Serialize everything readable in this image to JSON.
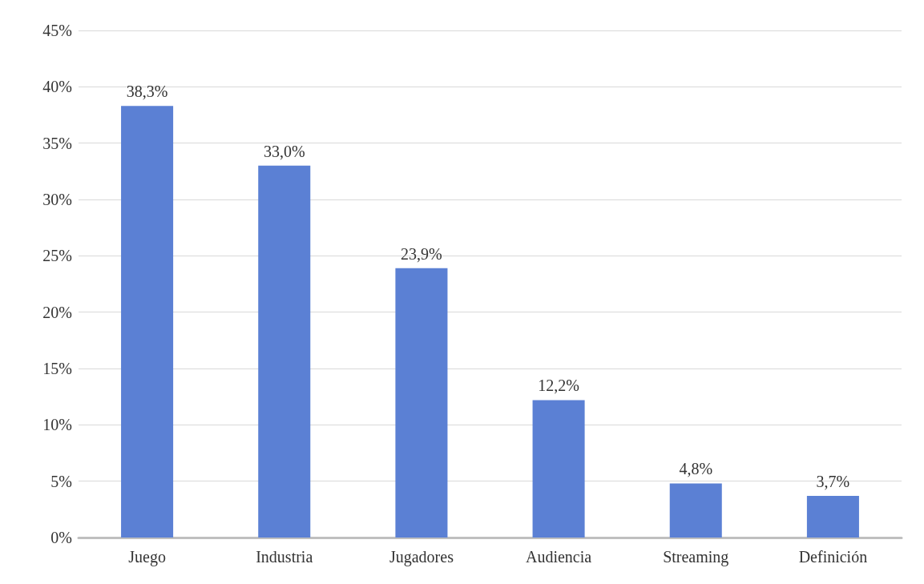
{
  "chart_data": {
    "type": "bar",
    "categories": [
      "Juego",
      "Industria",
      "Jugadores",
      "Audiencia",
      "Streaming",
      "Definición"
    ],
    "values": [
      38.3,
      33.0,
      23.9,
      12.2,
      4.8,
      3.7
    ],
    "value_labels": [
      "38,3%",
      "33,0%",
      "23,9%",
      "12,2%",
      "4,8%",
      "3,7%"
    ],
    "color": "#5b80d4",
    "ylim": [
      0,
      45
    ],
    "yticks": [
      {
        "value": 0,
        "label": "0%"
      },
      {
        "value": 5,
        "label": "5%"
      },
      {
        "value": 10,
        "label": "10%"
      },
      {
        "value": 15,
        "label": "15%"
      },
      {
        "value": 20,
        "label": "20%"
      },
      {
        "value": 25,
        "label": "25%"
      },
      {
        "value": 30,
        "label": "30%"
      },
      {
        "value": 35,
        "label": "35%"
      },
      {
        "value": 40,
        "label": "40%"
      },
      {
        "value": 45,
        "label": "45%"
      }
    ],
    "grid": "y"
  }
}
